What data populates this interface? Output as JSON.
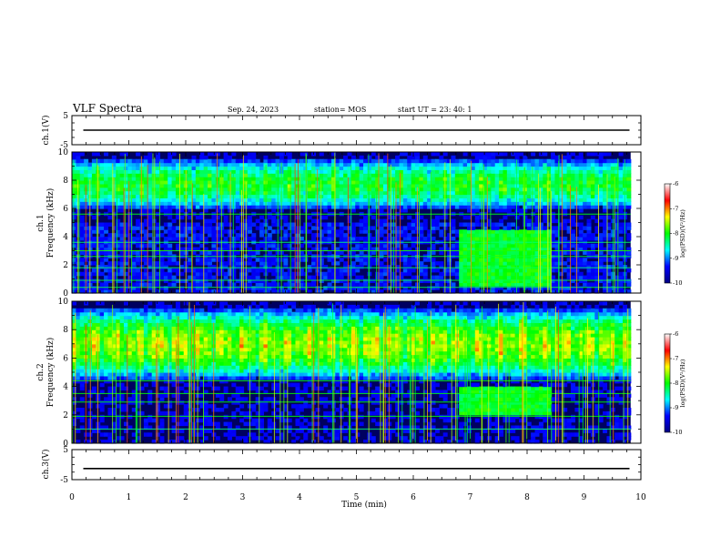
{
  "header": {
    "title": "VLF Spectra",
    "date": "Sep. 24, 2023",
    "station": "station= MOS",
    "start": "start  UT =   23: 40: 1"
  },
  "chart_data": {
    "type": "heatmap",
    "xlabel": "Time (min)",
    "xlim": [
      0,
      10
    ],
    "xticks": [
      "0",
      "1",
      "2",
      "3",
      "4",
      "5",
      "6",
      "7",
      "8",
      "9",
      "10"
    ],
    "panels": [
      {
        "id": "ch1-volt",
        "ylabel": "ch.1(V)",
        "ylim": [
          -5,
          5
        ],
        "yticks": [
          "5",
          "-5"
        ],
        "trace_level": 0
      },
      {
        "id": "ch1-spec",
        "ylabel_top": "ch.1",
        "ylabel": "Frequency (kHz)",
        "ylim": [
          0,
          10
        ],
        "yticks": [
          "0",
          "2",
          "4",
          "6",
          "8",
          "10"
        ],
        "band_kHz": [
          6,
          9.5
        ],
        "burst": {
          "t_min": [
            6.8,
            8.4
          ],
          "f_kHz": [
            0.5,
            4.5
          ]
        },
        "persistent_lines_kHz": [
          0.4,
          0.9,
          1.8,
          2.6,
          3.0,
          3.6,
          5.6
        ]
      },
      {
        "id": "ch2-spec",
        "ylabel_top": "ch.2",
        "ylabel": "Frequency (kHz)",
        "ylim": [
          0,
          10
        ],
        "yticks": [
          "0",
          "2",
          "4",
          "6",
          "8",
          "10"
        ],
        "band_kHz": [
          4.5,
          9.5
        ],
        "burst": {
          "t_min": [
            6.8,
            8.4
          ],
          "f_kHz": [
            2.0,
            4.0
          ]
        },
        "persistent_lines_kHz": [
          1.0,
          1.9,
          2.9,
          3.5,
          4.4
        ]
      },
      {
        "id": "ch3-volt",
        "ylabel": "ch.3(V)",
        "ylim": [
          -5,
          5
        ],
        "yticks": [
          "5",
          "-5"
        ],
        "trace_level": -1.3
      }
    ],
    "colorbar": {
      "label": "log(PSD)(V²/Hz)",
      "range": [
        -10,
        -6
      ],
      "ticks": [
        "-6",
        "-7",
        "-8",
        "-9",
        "-10"
      ],
      "colors": [
        "#000080",
        "#0000ff",
        "#00ffff",
        "#00ff00",
        "#ffff00",
        "#ff0000",
        "#ffffff"
      ]
    }
  }
}
